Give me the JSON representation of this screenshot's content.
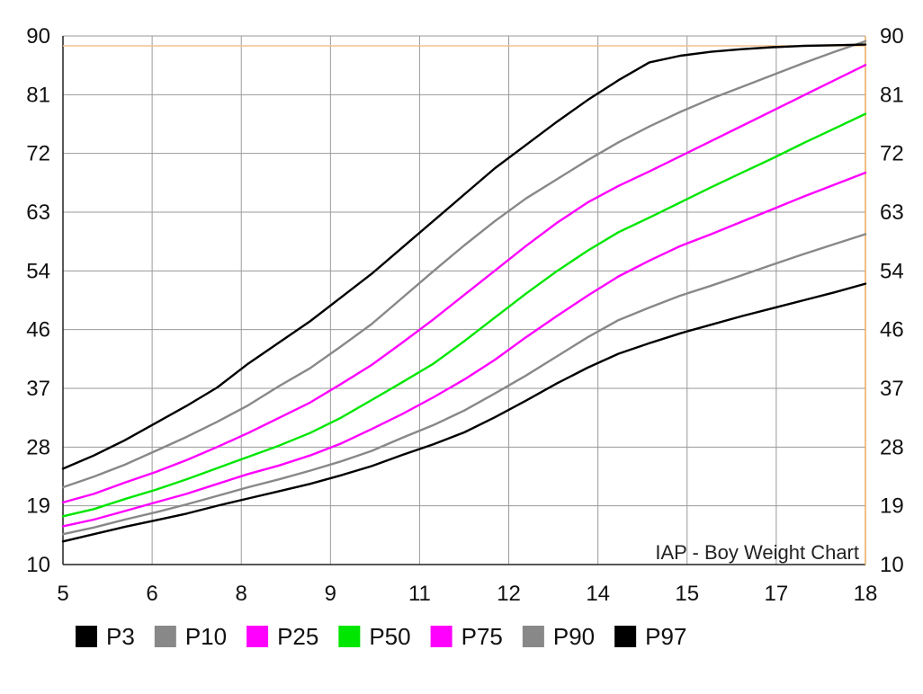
{
  "chart_data": {
    "type": "line",
    "title": "",
    "xlabel": "",
    "ylabel": "",
    "annotation": "IAP - Boy Weight Chart",
    "x_tick_labels": [
      "5",
      "6",
      "8",
      "9",
      "11",
      "12",
      "14",
      "15",
      "17",
      "18"
    ],
    "y_tick_labels": [
      "10",
      "19",
      "28",
      "37",
      "46",
      "54",
      "63",
      "72",
      "81",
      "90"
    ],
    "xlim": [
      5,
      18
    ],
    "ylim": [
      10,
      90
    ],
    "grid": true,
    "legend_position": "bottom",
    "reference_line": {
      "y": 88.5,
      "color": "#F5C08A"
    },
    "x": [
      5,
      5.5,
      6,
      6.5,
      7,
      7.5,
      8,
      8.5,
      9,
      9.5,
      10,
      10.5,
      11,
      11.5,
      12,
      12.5,
      13,
      13.5,
      14,
      14.5,
      15,
      15.5,
      16,
      16.5,
      17,
      17.5,
      18
    ],
    "series": [
      {
        "name": "P3",
        "color": "#000000",
        "values": [
          13.5,
          14.6,
          15.7,
          16.7,
          17.7,
          18.9,
          20.0,
          21.1,
          22.2,
          23.5,
          24.9,
          26.6,
          28.2,
          30.0,
          32.3,
          34.8,
          37.4,
          39.8,
          41.9,
          43.5,
          45.0,
          46.3,
          47.6,
          48.8,
          50.0,
          51.2,
          52.5
        ]
      },
      {
        "name": "P10",
        "color": "#888888",
        "values": [
          14.6,
          15.6,
          16.8,
          17.9,
          19.1,
          20.4,
          21.7,
          22.9,
          24.2,
          25.6,
          27.2,
          29.2,
          31.1,
          33.3,
          35.9,
          38.6,
          41.5,
          44.4,
          47.0,
          48.9,
          50.7,
          52.2,
          53.8,
          55.4,
          57.0,
          58.5,
          60.0
        ]
      },
      {
        "name": "P25",
        "color": "#FF00FF",
        "values": [
          15.8,
          16.8,
          18.1,
          19.4,
          20.7,
          22.2,
          23.7,
          25.0,
          26.5,
          28.3,
          30.5,
          32.8,
          35.3,
          38.0,
          41.0,
          44.4,
          47.6,
          50.7,
          53.6,
          56.0,
          58.2,
          60.0,
          61.9,
          63.8,
          65.7,
          67.5,
          69.3
        ]
      },
      {
        "name": "P50",
        "color": "#00E600",
        "values": [
          17.3,
          18.4,
          19.9,
          21.3,
          22.9,
          24.6,
          26.3,
          28.0,
          29.9,
          32.2,
          34.9,
          37.6,
          40.4,
          43.8,
          47.4,
          51.0,
          54.4,
          57.5,
          60.3,
          62.5,
          64.8,
          67.1,
          69.3,
          71.5,
          73.8,
          76.0,
          78.2
        ]
      },
      {
        "name": "P75",
        "color": "#FF00FF",
        "values": [
          19.4,
          20.7,
          22.4,
          24.0,
          25.8,
          27.8,
          29.9,
          32.2,
          34.5,
          37.3,
          40.2,
          43.6,
          47.1,
          50.8,
          54.5,
          58.2,
          61.7,
          64.8,
          67.3,
          69.5,
          71.8,
          74.1,
          76.4,
          78.7,
          81.0,
          83.3,
          85.6
        ]
      },
      {
        "name": "P90",
        "color": "#888888",
        "values": [
          21.7,
          23.3,
          25.1,
          27.2,
          29.3,
          31.6,
          34.1,
          37.0,
          39.7,
          43.0,
          46.4,
          50.4,
          54.4,
          58.3,
          62.0,
          65.4,
          68.3,
          71.2,
          73.9,
          76.3,
          78.5,
          80.5,
          82.3,
          84.1,
          85.9,
          87.6,
          89.2
        ]
      },
      {
        "name": "P97",
        "color": "#000000",
        "values": [
          24.5,
          26.5,
          28.8,
          31.4,
          34.0,
          36.8,
          40.4,
          43.6,
          46.8,
          50.4,
          54.0,
          58.0,
          62.0,
          66.0,
          70.0,
          73.5,
          77.0,
          80.3,
          83.3,
          86.0,
          87.0,
          87.6,
          88.0,
          88.3,
          88.5,
          88.6,
          88.7
        ]
      }
    ]
  }
}
